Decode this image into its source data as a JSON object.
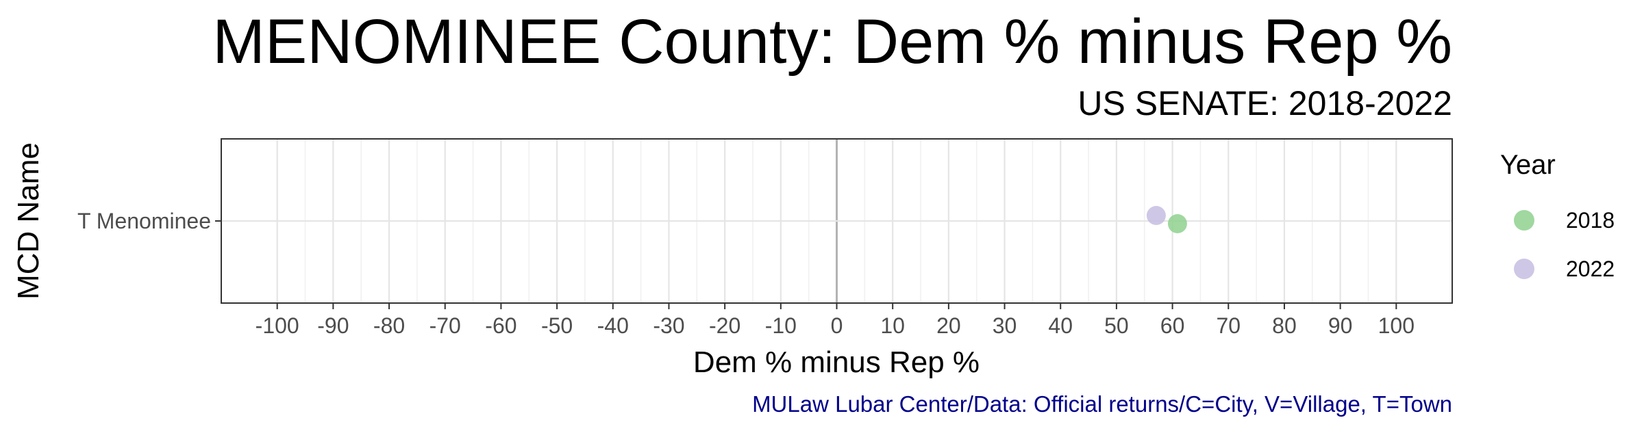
{
  "chart_data": {
    "type": "scatter",
    "title": "MENOMINEE County: Dem % minus Rep %",
    "subtitle": "US SENATE: 2018-2022",
    "xlabel": "Dem % minus Rep %",
    "ylabel": "MCD Name",
    "xlim": [
      -110,
      110
    ],
    "x_ticks": [
      -100,
      -90,
      -80,
      -70,
      -60,
      -50,
      -40,
      -30,
      -20,
      -10,
      0,
      10,
      20,
      30,
      40,
      50,
      60,
      70,
      80,
      90,
      100
    ],
    "categories": [
      "T Menominee"
    ],
    "grid": true,
    "legend": {
      "title": "Year",
      "position": "right"
    },
    "series": [
      {
        "name": "2018",
        "color": "#8fd18f",
        "points": [
          {
            "category": "T Menominee",
            "x": 60.9
          }
        ]
      },
      {
        "name": "2022",
        "color": "#c7bde2",
        "points": [
          {
            "category": "T Menominee",
            "x": 57.1
          }
        ]
      }
    ],
    "caption": "MULaw Lubar Center/Data: Official returns/C=City, V=Village, T=Town"
  }
}
